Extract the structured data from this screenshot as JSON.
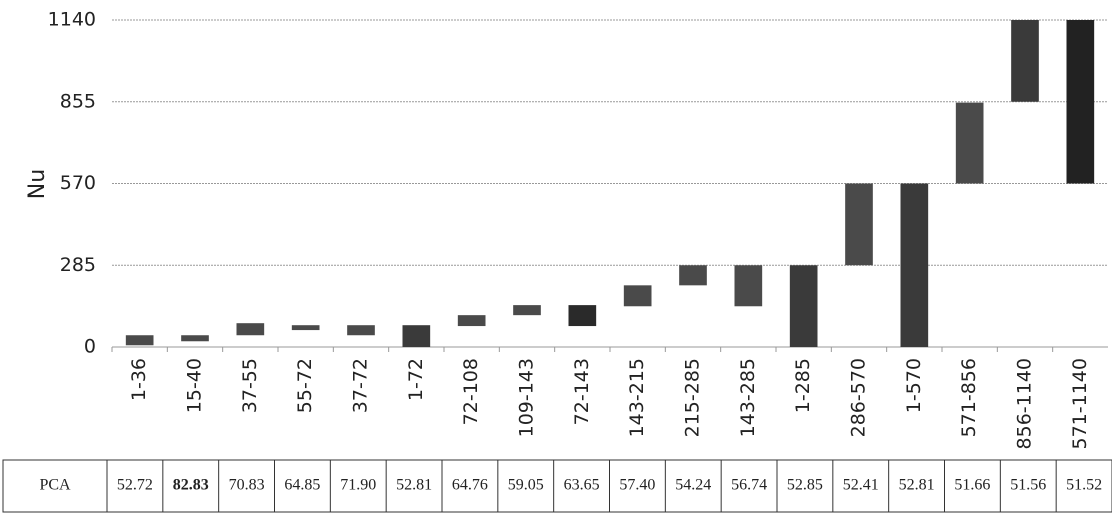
{
  "chart_data": {
    "type": "floating-bar",
    "y_label": "Nu",
    "categories": [
      "1-36",
      "15-40",
      "37-55",
      "55-72",
      "37-72",
      "1-72",
      "72-108",
      "109-143",
      "72-143",
      "143-215",
      "215-285",
      "143-285",
      "1-285",
      "286-570",
      "1-570",
      "571-856",
      "856-1140",
      "571-1140"
    ],
    "low": [
      6,
      20,
      41,
      59,
      41,
      0,
      73,
      111,
      73,
      142,
      215,
      142,
      0,
      285,
      0,
      570,
      855,
      570
    ],
    "high": [
      41,
      41,
      83,
      76,
      76,
      76,
      111,
      146,
      146,
      215,
      285,
      285,
      285,
      570,
      570,
      852,
      1140,
      1140
    ],
    "colors": [
      "#4a4a4a",
      "#4a4a4a",
      "#4a4a4a",
      "#4a4a4a",
      "#4a4a4a",
      "#3a3a3a",
      "#4a4a4a",
      "#4a4a4a",
      "#2a2a2a",
      "#4a4a4a",
      "#4a4a4a",
      "#4a4a4a",
      "#3a3a3a",
      "#4a4a4a",
      "#3a3a3a",
      "#4a4a4a",
      "#3a3a3a",
      "#222222"
    ],
    "ylim": [
      0,
      1140
    ],
    "yticks": [
      0,
      285,
      570,
      855,
      1140
    ],
    "grid": true
  },
  "table": {
    "header": "PCA",
    "bold_index": 1,
    "values": [
      "52.72",
      "82.83",
      "70.83",
      "64.85",
      "71.90",
      "52.81",
      "64.76",
      "59.05",
      "63.65",
      "57.40",
      "54.24",
      "56.74",
      "52.85",
      "52.41",
      "52.81",
      "51.66",
      "51.56",
      "51.52"
    ]
  }
}
